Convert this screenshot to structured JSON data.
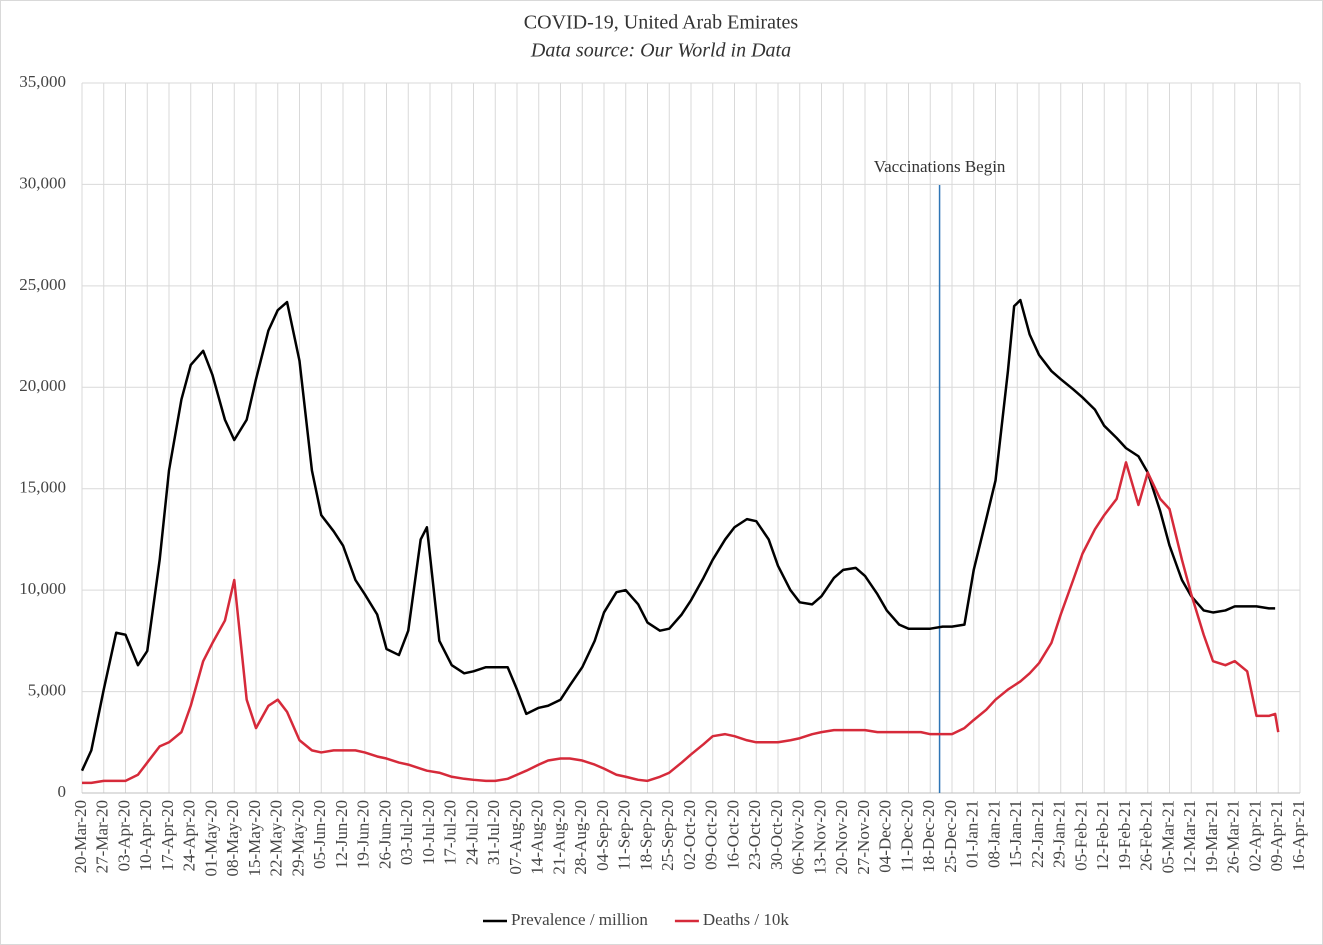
{
  "chart_data": {
    "type": "line",
    "title": "COVID-19, United Arab Emirates",
    "subtitle": "Data source: Our World in Data",
    "x": [
      "20-Mar-20",
      "23-Mar-20",
      "27-Mar-20",
      "31-Mar-20",
      "03-Apr-20",
      "07-Apr-20",
      "10-Apr-20",
      "14-Apr-20",
      "17-Apr-20",
      "21-Apr-20",
      "24-Apr-20",
      "28-Apr-20",
      "01-May-20",
      "05-May-20",
      "08-May-20",
      "12-May-20",
      "15-May-20",
      "19-May-20",
      "22-May-20",
      "25-May-20",
      "29-May-20",
      "02-Jun-20",
      "05-Jun-20",
      "09-Jun-20",
      "12-Jun-20",
      "16-Jun-20",
      "19-Jun-20",
      "23-Jun-20",
      "26-Jun-20",
      "30-Jun-20",
      "03-Jul-20",
      "07-Jul-20",
      "09-Jul-20",
      "13-Jul-20",
      "17-Jul-20",
      "21-Jul-20",
      "24-Jul-20",
      "28-Jul-20",
      "31-Jul-20",
      "04-Aug-20",
      "07-Aug-20",
      "10-Aug-20",
      "14-Aug-20",
      "17-Aug-20",
      "21-Aug-20",
      "24-Aug-20",
      "28-Aug-20",
      "01-Sep-20",
      "04-Sep-20",
      "08-Sep-20",
      "11-Sep-20",
      "15-Sep-20",
      "18-Sep-20",
      "22-Sep-20",
      "25-Sep-20",
      "29-Sep-20",
      "02-Oct-20",
      "06-Oct-20",
      "09-Oct-20",
      "13-Oct-20",
      "16-Oct-20",
      "20-Oct-20",
      "23-Oct-20",
      "27-Oct-20",
      "30-Oct-20",
      "03-Nov-20",
      "06-Nov-20",
      "10-Nov-20",
      "13-Nov-20",
      "17-Nov-20",
      "20-Nov-20",
      "24-Nov-20",
      "27-Nov-20",
      "01-Dec-20",
      "04-Dec-20",
      "08-Dec-20",
      "11-Dec-20",
      "15-Dec-20",
      "18-Dec-20",
      "22-Dec-20",
      "25-Dec-20",
      "29-Dec-20",
      "01-Jan-21",
      "05-Jan-21",
      "08-Jan-21",
      "12-Jan-21",
      "14-Jan-21",
      "16-Jan-21",
      "19-Jan-21",
      "22-Jan-21",
      "26-Jan-21",
      "29-Jan-21",
      "02-Feb-21",
      "05-Feb-21",
      "09-Feb-21",
      "12-Feb-21",
      "16-Feb-21",
      "19-Feb-21",
      "23-Feb-21",
      "26-Feb-21",
      "02-Mar-21",
      "05-Mar-21",
      "09-Mar-21",
      "12-Mar-21",
      "16-Mar-21",
      "19-Mar-21",
      "23-Mar-21",
      "26-Mar-21",
      "30-Mar-21",
      "02-Apr-21",
      "06-Apr-21",
      "08-Apr-21",
      "09-Apr-21"
    ],
    "series": [
      {
        "name": "Prevalence / million",
        "color": "#000000",
        "values": [
          1100,
          2100,
          5100,
          7900,
          7800,
          6300,
          7000,
          11500,
          15900,
          19400,
          21100,
          21800,
          20600,
          18400,
          17400,
          18400,
          20400,
          22800,
          23800,
          24200,
          21300,
          15900,
          13700,
          12900,
          12200,
          10500,
          9800,
          8800,
          7100,
          6800,
          8000,
          12500,
          13100,
          7500,
          6300,
          5900,
          6000,
          6200,
          6200,
          6200,
          5100,
          3900,
          4200,
          4300,
          4600,
          5300,
          6200,
          7500,
          8900,
          9900,
          10000,
          9300,
          8400,
          8000,
          8100,
          8800,
          9500,
          10600,
          11500,
          12500,
          13100,
          13500,
          13400,
          12500,
          11200,
          10000,
          9400,
          9300,
          9700,
          10600,
          11000,
          11100,
          10700,
          9800,
          9000,
          8300,
          8100,
          8100,
          8100,
          8200,
          8200,
          8300,
          11000,
          13500,
          15400,
          20800,
          24000,
          24300,
          22600,
          21600,
          20800,
          20400,
          19900,
          19500,
          18900,
          18100,
          17500,
          17000,
          16600,
          15800,
          13900,
          12200,
          10500,
          9700,
          9000,
          8900,
          9000,
          9200,
          9200,
          9200,
          9100,
          9100,
          null
        ]
      },
      {
        "name": "Deaths / 10k",
        "color": "#d62a3a",
        "values": [
          500,
          500,
          600,
          600,
          600,
          900,
          1500,
          2300,
          2500,
          3000,
          4300,
          6500,
          7400,
          8500,
          10500,
          4600,
          3200,
          4300,
          4600,
          4000,
          2600,
          2100,
          2000,
          2100,
          2100,
          2100,
          2000,
          1800,
          1700,
          1500,
          1400,
          1200,
          1100,
          1000,
          800,
          700,
          650,
          600,
          600,
          700,
          900,
          1100,
          1400,
          1600,
          1700,
          1700,
          1600,
          1400,
          1200,
          900,
          800,
          650,
          600,
          800,
          1000,
          1500,
          1900,
          2400,
          2800,
          2900,
          2800,
          2600,
          2500,
          2500,
          2500,
          2600,
          2700,
          2900,
          3000,
          3100,
          3100,
          3100,
          3100,
          3000,
          3000,
          3000,
          3000,
          3000,
          2900,
          2900,
          2900,
          3200,
          3600,
          4100,
          4600,
          5100,
          5300,
          5500,
          5900,
          6400,
          7400,
          8800,
          10500,
          11800,
          13000,
          13700,
          14500,
          16300,
          14200,
          15800,
          14500,
          14000,
          11500,
          9800,
          7800,
          6500,
          6300,
          6500,
          6000,
          3800,
          3800,
          3900,
          3000
        ]
      }
    ],
    "xlim": [
      "20-Mar-20",
      "16-Apr-21"
    ],
    "xticks": [
      "20-Mar-20",
      "27-Mar-20",
      "03-Apr-20",
      "10-Apr-20",
      "17-Apr-20",
      "24-Apr-20",
      "01-May-20",
      "08-May-20",
      "15-May-20",
      "22-May-20",
      "29-May-20",
      "05-Jun-20",
      "12-Jun-20",
      "19-Jun-20",
      "26-Jun-20",
      "03-Jul-20",
      "10-Jul-20",
      "17-Jul-20",
      "24-Jul-20",
      "31-Jul-20",
      "07-Aug-20",
      "14-Aug-20",
      "21-Aug-20",
      "28-Aug-20",
      "04-Sep-20",
      "11-Sep-20",
      "18-Sep-20",
      "25-Sep-20",
      "02-Oct-20",
      "09-Oct-20",
      "16-Oct-20",
      "23-Oct-20",
      "30-Oct-20",
      "06-Nov-20",
      "13-Nov-20",
      "20-Nov-20",
      "27-Nov-20",
      "04-Dec-20",
      "11-Dec-20",
      "18-Dec-20",
      "25-Dec-20",
      "01-Jan-21",
      "08-Jan-21",
      "15-Jan-21",
      "22-Jan-21",
      "29-Jan-21",
      "05-Feb-21",
      "12-Feb-21",
      "19-Feb-21",
      "26-Feb-21",
      "05-Mar-21",
      "12-Mar-21",
      "19-Mar-21",
      "26-Mar-21",
      "02-Apr-21",
      "09-Apr-21",
      "16-Apr-21"
    ],
    "ylim": [
      0,
      35000
    ],
    "yticks": [
      0,
      {
        "value": 5000,
        "label": "5,000"
      },
      {
        "value": 10000,
        "label": "10,000"
      },
      {
        "value": 15000,
        "label": "15,000"
      },
      {
        "value": 20000,
        "label": "20,000"
      },
      {
        "value": 25000,
        "label": "25,000"
      },
      {
        "value": 30000,
        "label": "30,000"
      },
      {
        "value": 35000,
        "label": "35,000"
      }
    ],
    "grid": true,
    "legend": "bottom",
    "annotations": [
      {
        "text": "Vaccinations Begin",
        "x": "21-Dec-20",
        "color": "#2e75b6"
      }
    ]
  }
}
